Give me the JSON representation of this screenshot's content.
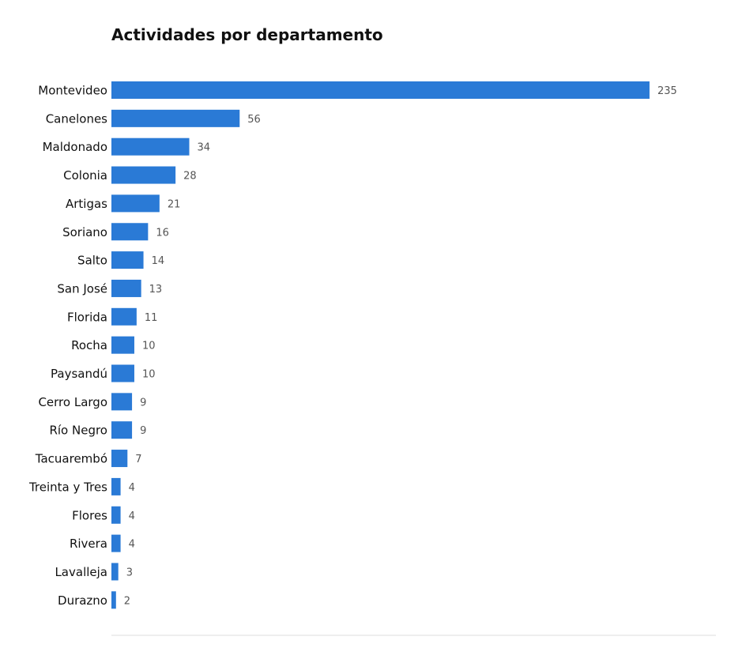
{
  "chart_data": {
    "type": "bar",
    "orientation": "horizontal",
    "title": "Actividades por departamento",
    "xlabel": "",
    "ylabel": "",
    "categories": [
      "Montevideo",
      "Canelones",
      "Maldonado",
      "Colonia",
      "Artigas",
      "Soriano",
      "Salto",
      "San José",
      "Florida",
      "Rocha",
      "Paysandú",
      "Cerro Largo",
      "Río Negro",
      "Tacuarembó",
      "Treinta y Tres",
      "Flores",
      "Rivera",
      "Lavalleja",
      "Durazno"
    ],
    "values": [
      235,
      56,
      34,
      28,
      21,
      16,
      14,
      13,
      11,
      10,
      10,
      9,
      9,
      7,
      4,
      4,
      4,
      3,
      2
    ],
    "xlim": [
      0,
      264
    ],
    "grid": false,
    "legend": "none",
    "bar_color": "#2a7ad6",
    "baseline_color": "#dddddd"
  }
}
